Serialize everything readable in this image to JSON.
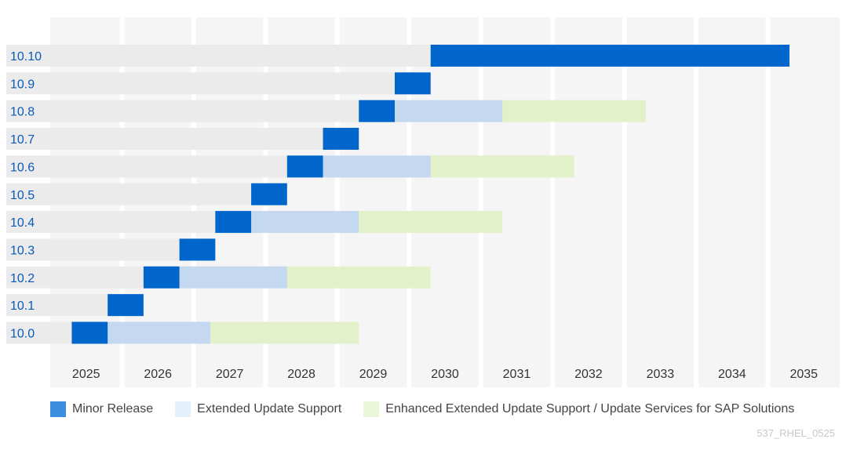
{
  "chart_data": {
    "type": "bar",
    "subtype": "gantt",
    "title": "",
    "xlabel": "",
    "ylabel": "",
    "x_ticks": [
      "2025",
      "2026",
      "2027",
      "2028",
      "2029",
      "2030",
      "2031",
      "2032",
      "2033",
      "2034",
      "2035"
    ],
    "xlim": [
      2024.55,
      2035.55
    ],
    "rows": [
      {
        "label": "10.10",
        "minor_release": [
          2029.85,
          2034.85
        ],
        "eus": null,
        "eeus": null
      },
      {
        "label": "10.9",
        "minor_release": [
          2029.35,
          2029.85
        ],
        "eus": null,
        "eeus": null
      },
      {
        "label": "10.8",
        "minor_release": [
          2028.85,
          2029.35
        ],
        "eus": [
          2029.35,
          2030.85
        ],
        "eeus": [
          2030.85,
          2032.85
        ]
      },
      {
        "label": "10.7",
        "minor_release": [
          2028.35,
          2028.85
        ],
        "eus": null,
        "eeus": null
      },
      {
        "label": "10.6",
        "minor_release": [
          2027.85,
          2028.35
        ],
        "eus": [
          2028.35,
          2029.85
        ],
        "eeus": [
          2029.85,
          2031.85
        ]
      },
      {
        "label": "10.5",
        "minor_release": [
          2027.35,
          2027.85
        ],
        "eus": null,
        "eeus": null
      },
      {
        "label": "10.4",
        "minor_release": [
          2026.85,
          2027.35
        ],
        "eus": [
          2027.35,
          2028.85
        ],
        "eeus": [
          2028.85,
          2030.85
        ]
      },
      {
        "label": "10.3",
        "minor_release": [
          2026.35,
          2026.85
        ],
        "eus": null,
        "eeus": null
      },
      {
        "label": "10.2",
        "minor_release": [
          2025.85,
          2026.35
        ],
        "eus": [
          2026.35,
          2027.85
        ],
        "eeus": [
          2027.85,
          2029.85
        ]
      },
      {
        "label": "10.1",
        "minor_release": [
          2025.35,
          2025.85
        ],
        "eus": null,
        "eeus": null
      },
      {
        "label": "10.0",
        "minor_release": [
          2024.85,
          2025.35
        ],
        "eus": [
          2025.35,
          2026.78
        ],
        "eeus": [
          2026.78,
          2028.85
        ]
      }
    ],
    "series": [
      {
        "key": "minor_release",
        "name": "Minor Release",
        "color": "#0066cc"
      },
      {
        "key": "eus",
        "name": "Extended Update Support",
        "color": "#c4d8f0"
      },
      {
        "key": "eeus",
        "name": "Enhanced Extended Update Support / Update Services for SAP Solutions",
        "color": "#e2f1c9"
      }
    ],
    "legend_swatch_colors": [
      "#3d8ee0",
      "#e4f0fb",
      "#eaf6d8"
    ],
    "legend_position": "bottom-left",
    "grid": false
  },
  "footnote": "537_RHEL_0525",
  "colors": {
    "column_bg": "#f5f5f5",
    "row_track": "#ebebeb"
  }
}
